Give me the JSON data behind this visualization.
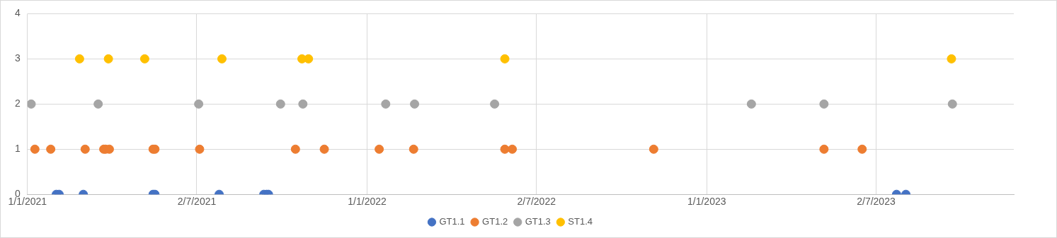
{
  "chart_data": {
    "type": "scatter",
    "marker": "circle",
    "grid": true,
    "legend": "bottom",
    "xlim": [
      "2021-01-01",
      "2023-11-27"
    ],
    "xticks": [
      {
        "value": "2021-01-01",
        "label": "1/1/2021"
      },
      {
        "value": "2021-07-02",
        "label": "2/7/2021"
      },
      {
        "value": "2022-01-01",
        "label": "1/1/2022"
      },
      {
        "value": "2022-07-02",
        "label": "2/7/2022"
      },
      {
        "value": "2023-01-01",
        "label": "1/1/2023"
      },
      {
        "value": "2023-07-02",
        "label": "2/7/2023"
      }
    ],
    "ylim": [
      0,
      4
    ],
    "yticks": [
      0,
      1,
      2,
      3,
      4
    ],
    "series": [
      {
        "name": "GT1.1",
        "color": "#4472c4",
        "x": [
          "2021-02-01",
          "2021-02-04",
          "2021-03-02",
          "2021-05-16",
          "2021-05-18",
          "2021-07-26",
          "2021-09-12",
          "2021-09-15",
          "2021-09-17",
          "2023-07-24",
          "2023-08-03"
        ],
        "values": [
          0,
          0,
          0,
          0,
          0,
          0,
          0,
          0,
          0,
          0,
          0
        ]
      },
      {
        "name": "GT1.2",
        "color": "#ed7d31",
        "x": [
          "2021-01-09",
          "2021-01-26",
          "2021-03-04",
          "2021-03-24",
          "2021-03-26",
          "2021-03-30",
          "2021-05-16",
          "2021-05-18",
          "2021-07-05",
          "2021-10-16",
          "2021-11-16",
          "2022-01-14",
          "2022-02-20",
          "2022-05-29",
          "2022-06-06",
          "2022-11-05",
          "2023-05-07",
          "2023-06-17"
        ],
        "values": [
          1,
          1,
          1,
          1,
          1,
          1,
          1,
          1,
          1,
          1,
          1,
          1,
          1,
          1,
          1,
          1,
          1,
          1
        ]
      },
      {
        "name": "GT1.3",
        "color": "#a5a5a5",
        "x": [
          "2021-01-05",
          "2021-03-18",
          "2021-07-04",
          "2021-09-30",
          "2021-10-24",
          "2022-01-21",
          "2022-02-21",
          "2022-05-18",
          "2023-02-18",
          "2023-05-07",
          "2023-09-22"
        ],
        "values": [
          2,
          2,
          2,
          2,
          2,
          2,
          2,
          2,
          2,
          2,
          2
        ]
      },
      {
        "name": "ST1.4",
        "color": "#ffc000",
        "x": [
          "2021-02-26",
          "2021-03-29",
          "2021-05-07",
          "2021-07-29",
          "2021-10-23",
          "2021-10-30",
          "2022-05-29",
          "2023-09-21"
        ],
        "values": [
          3,
          3,
          3,
          3,
          3,
          3,
          3,
          3
        ]
      }
    ]
  }
}
